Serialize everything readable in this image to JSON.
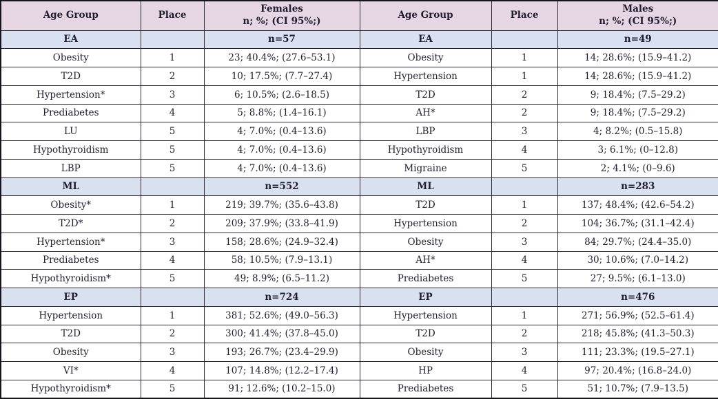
{
  "colors": {
    "header_bg": "#e6d6e4",
    "section_bg": "#d9e1f1",
    "border_color": "#2a2730",
    "outer_border": "#16141c",
    "text_color": "#201d2e"
  },
  "table": {
    "header": {
      "age_group_females": "Age Group",
      "place_females": "Place",
      "females_title": "Females",
      "females_subtitle": "n; %; (CI 95%;)",
      "age_group_males": "Age Group",
      "place_males": "Place",
      "males_title": "Males",
      "males_subtitle": "n; %; (CI 95%;)"
    },
    "sections": [
      {
        "label": "EA",
        "females_n": "n=57",
        "males_n": "n=49",
        "rows": [
          {
            "cells": [
              "Obesity",
              "1",
              "23; 40.4%; (27.6–53.1)",
              "Obesity",
              "1",
              "14; 28.6%; (15.9–41.2)"
            ]
          },
          {
            "cells": [
              "T2D",
              "2",
              "10; 17.5%; (7.7–27.4)",
              "Hypertension",
              "1",
              "14; 28.6%; (15.9–41.2)"
            ]
          },
          {
            "cells": [
              "Hypertension*",
              "3",
              "6; 10.5%; (2.6–18.5)",
              "T2D",
              "2",
              "9; 18.4%; (7.5–29.2)"
            ]
          },
          {
            "cells": [
              "Prediabetes",
              "4",
              "5; 8.8%; (1.4–16.1)",
              "AH*",
              "2",
              "9; 18.4%; (7.5–29.2)"
            ]
          },
          {
            "cells": [
              "LU",
              "5",
              "4; 7.0%; (0.4–13.6)",
              "LBP",
              "3",
              "4; 8.2%; (0.5–15.8)"
            ]
          },
          {
            "cells": [
              "Hypothyroidism",
              "5",
              "4; 7.0%; (0.4–13.6)",
              "Hypothyroidism",
              "4",
              "3; 6.1%; (0–12.8)"
            ]
          },
          {
            "cells": [
              "LBP",
              "5",
              "4; 7.0%; (0.4–13.6)",
              "Migraine",
              "5",
              "2; 4.1%; (0–9.6)"
            ]
          }
        ]
      },
      {
        "label": "ML",
        "females_n": "n=552",
        "males_n": "n=283",
        "rows": [
          {
            "cells": [
              "Obesity*",
              "1",
              "219; 39.7%; (35.6–43.8)",
              "T2D",
              "1",
              "137; 48.4%; (42.6–54.2)"
            ]
          },
          {
            "cells": [
              "T2D*",
              "2",
              "209; 37.9%; (33.8–41.9)",
              "Hypertension",
              "2",
              "104; 36.7%; (31.1–42.4)"
            ]
          },
          {
            "cells": [
              "Hypertension*",
              "3",
              "158; 28.6%; (24.9–32.4)",
              "Obesity",
              "3",
              "84; 29.7%; (24.4–35.0)"
            ]
          },
          {
            "cells": [
              "Prediabetes",
              "4",
              "58; 10.5%; (7.9–13.1)",
              "AH*",
              "4",
              "30; 10.6%; (7.0–14.2)"
            ]
          },
          {
            "cells": [
              "Hypothyroidism*",
              "5",
              "49; 8.9%; (6.5–11.2)",
              "Prediabetes",
              "5",
              "27; 9.5%; (6.1–13.0)"
            ]
          }
        ]
      },
      {
        "label": "EP",
        "females_n": "n=724",
        "males_n": "n=476",
        "rows": [
          {
            "cells": [
              "Hypertension",
              "1",
              "381; 52.6%; (49.0–56.3)",
              "Hypertension",
              "1",
              "271; 56.9%; (52.5–61.4)"
            ]
          },
          {
            "cells": [
              "T2D",
              "2",
              "300; 41.4%; (37.8–45.0)",
              "T2D",
              "2",
              "218; 45.8%; (41.3–50.3)"
            ]
          },
          {
            "cells": [
              "Obesity",
              "3",
              "193; 26.7%; (23.4–29.9)",
              "Obesity",
              "3",
              "111; 23.3%; (19.5–27.1)"
            ]
          },
          {
            "cells": [
              "VI*",
              "4",
              "107; 14.8%; (12.2–17.4)",
              "HP",
              "4",
              "97; 20.4%; (16.8–24.0)"
            ]
          },
          {
            "cells": [
              "Hypothyroidism*",
              "5",
              "91; 12.6%; (10.2–15.0)",
              "Prediabetes",
              "5",
              "51; 10.7%; (7.9–13.5)"
            ]
          }
        ]
      }
    ]
  }
}
